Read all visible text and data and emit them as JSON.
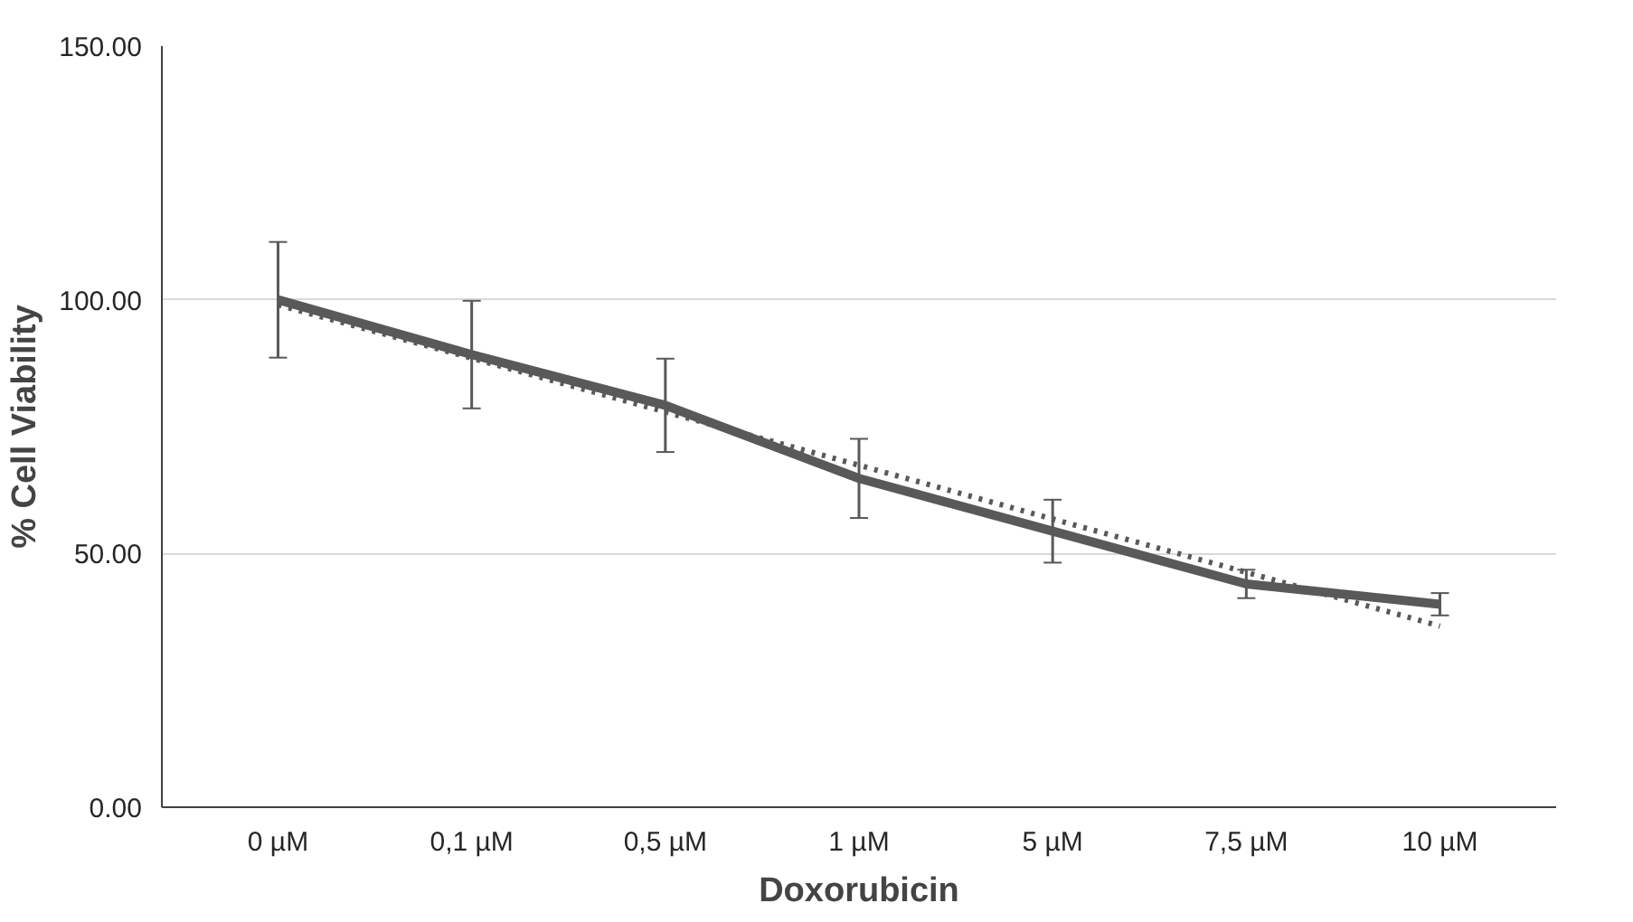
{
  "chart_data": {
    "type": "line",
    "xlabel": "Doxorubicin",
    "ylabel": "% Cell Viability",
    "categories": [
      "0 µM",
      "0,1 µM",
      "0,5 µM",
      "1 µM",
      "5 µM",
      "7,5 µM",
      "10 µM"
    ],
    "series": [
      {
        "color": "#595959",
        "values": [
          100,
          89.2,
          79.2,
          64.8,
          54.4,
          44,
          40
        ],
        "errors": [
          11.4,
          10.6,
          9.2,
          7.8,
          6.2,
          2.8,
          2.2
        ]
      },
      {
        "color": "#595959",
        "line_style": "dotted",
        "values": [
          99.0,
          88.5,
          77.9,
          67.4,
          56.8,
          46.3,
          35.7
        ]
      }
    ],
    "ylim": [
      0,
      150
    ],
    "yticks": [
      {
        "value": 0,
        "label": "0.00"
      },
      {
        "value": 50,
        "label": "50.00"
      },
      {
        "value": 100,
        "label": "100.00"
      },
      {
        "value": 150,
        "label": "150.00"
      }
    ],
    "grid": "y",
    "marker": "none"
  }
}
